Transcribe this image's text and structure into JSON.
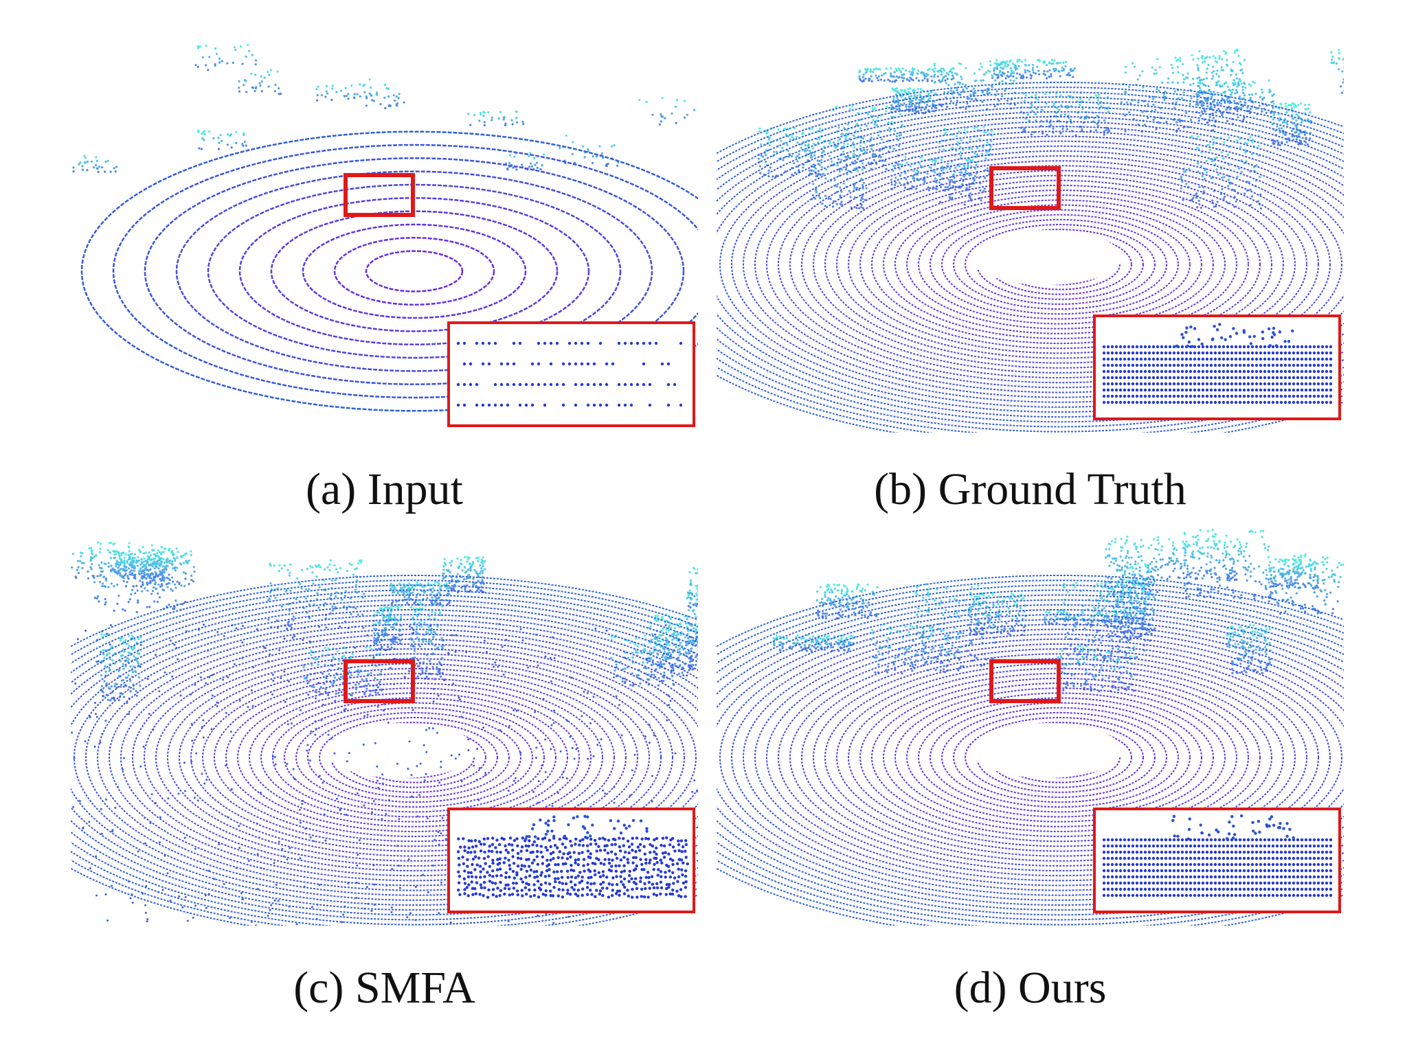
{
  "figure": {
    "panels": [
      {
        "caption": "(a) Input"
      },
      {
        "caption": "(b) Ground Truth"
      },
      {
        "caption": "(c) SMFA"
      },
      {
        "caption": "(d) Ours"
      }
    ]
  }
}
